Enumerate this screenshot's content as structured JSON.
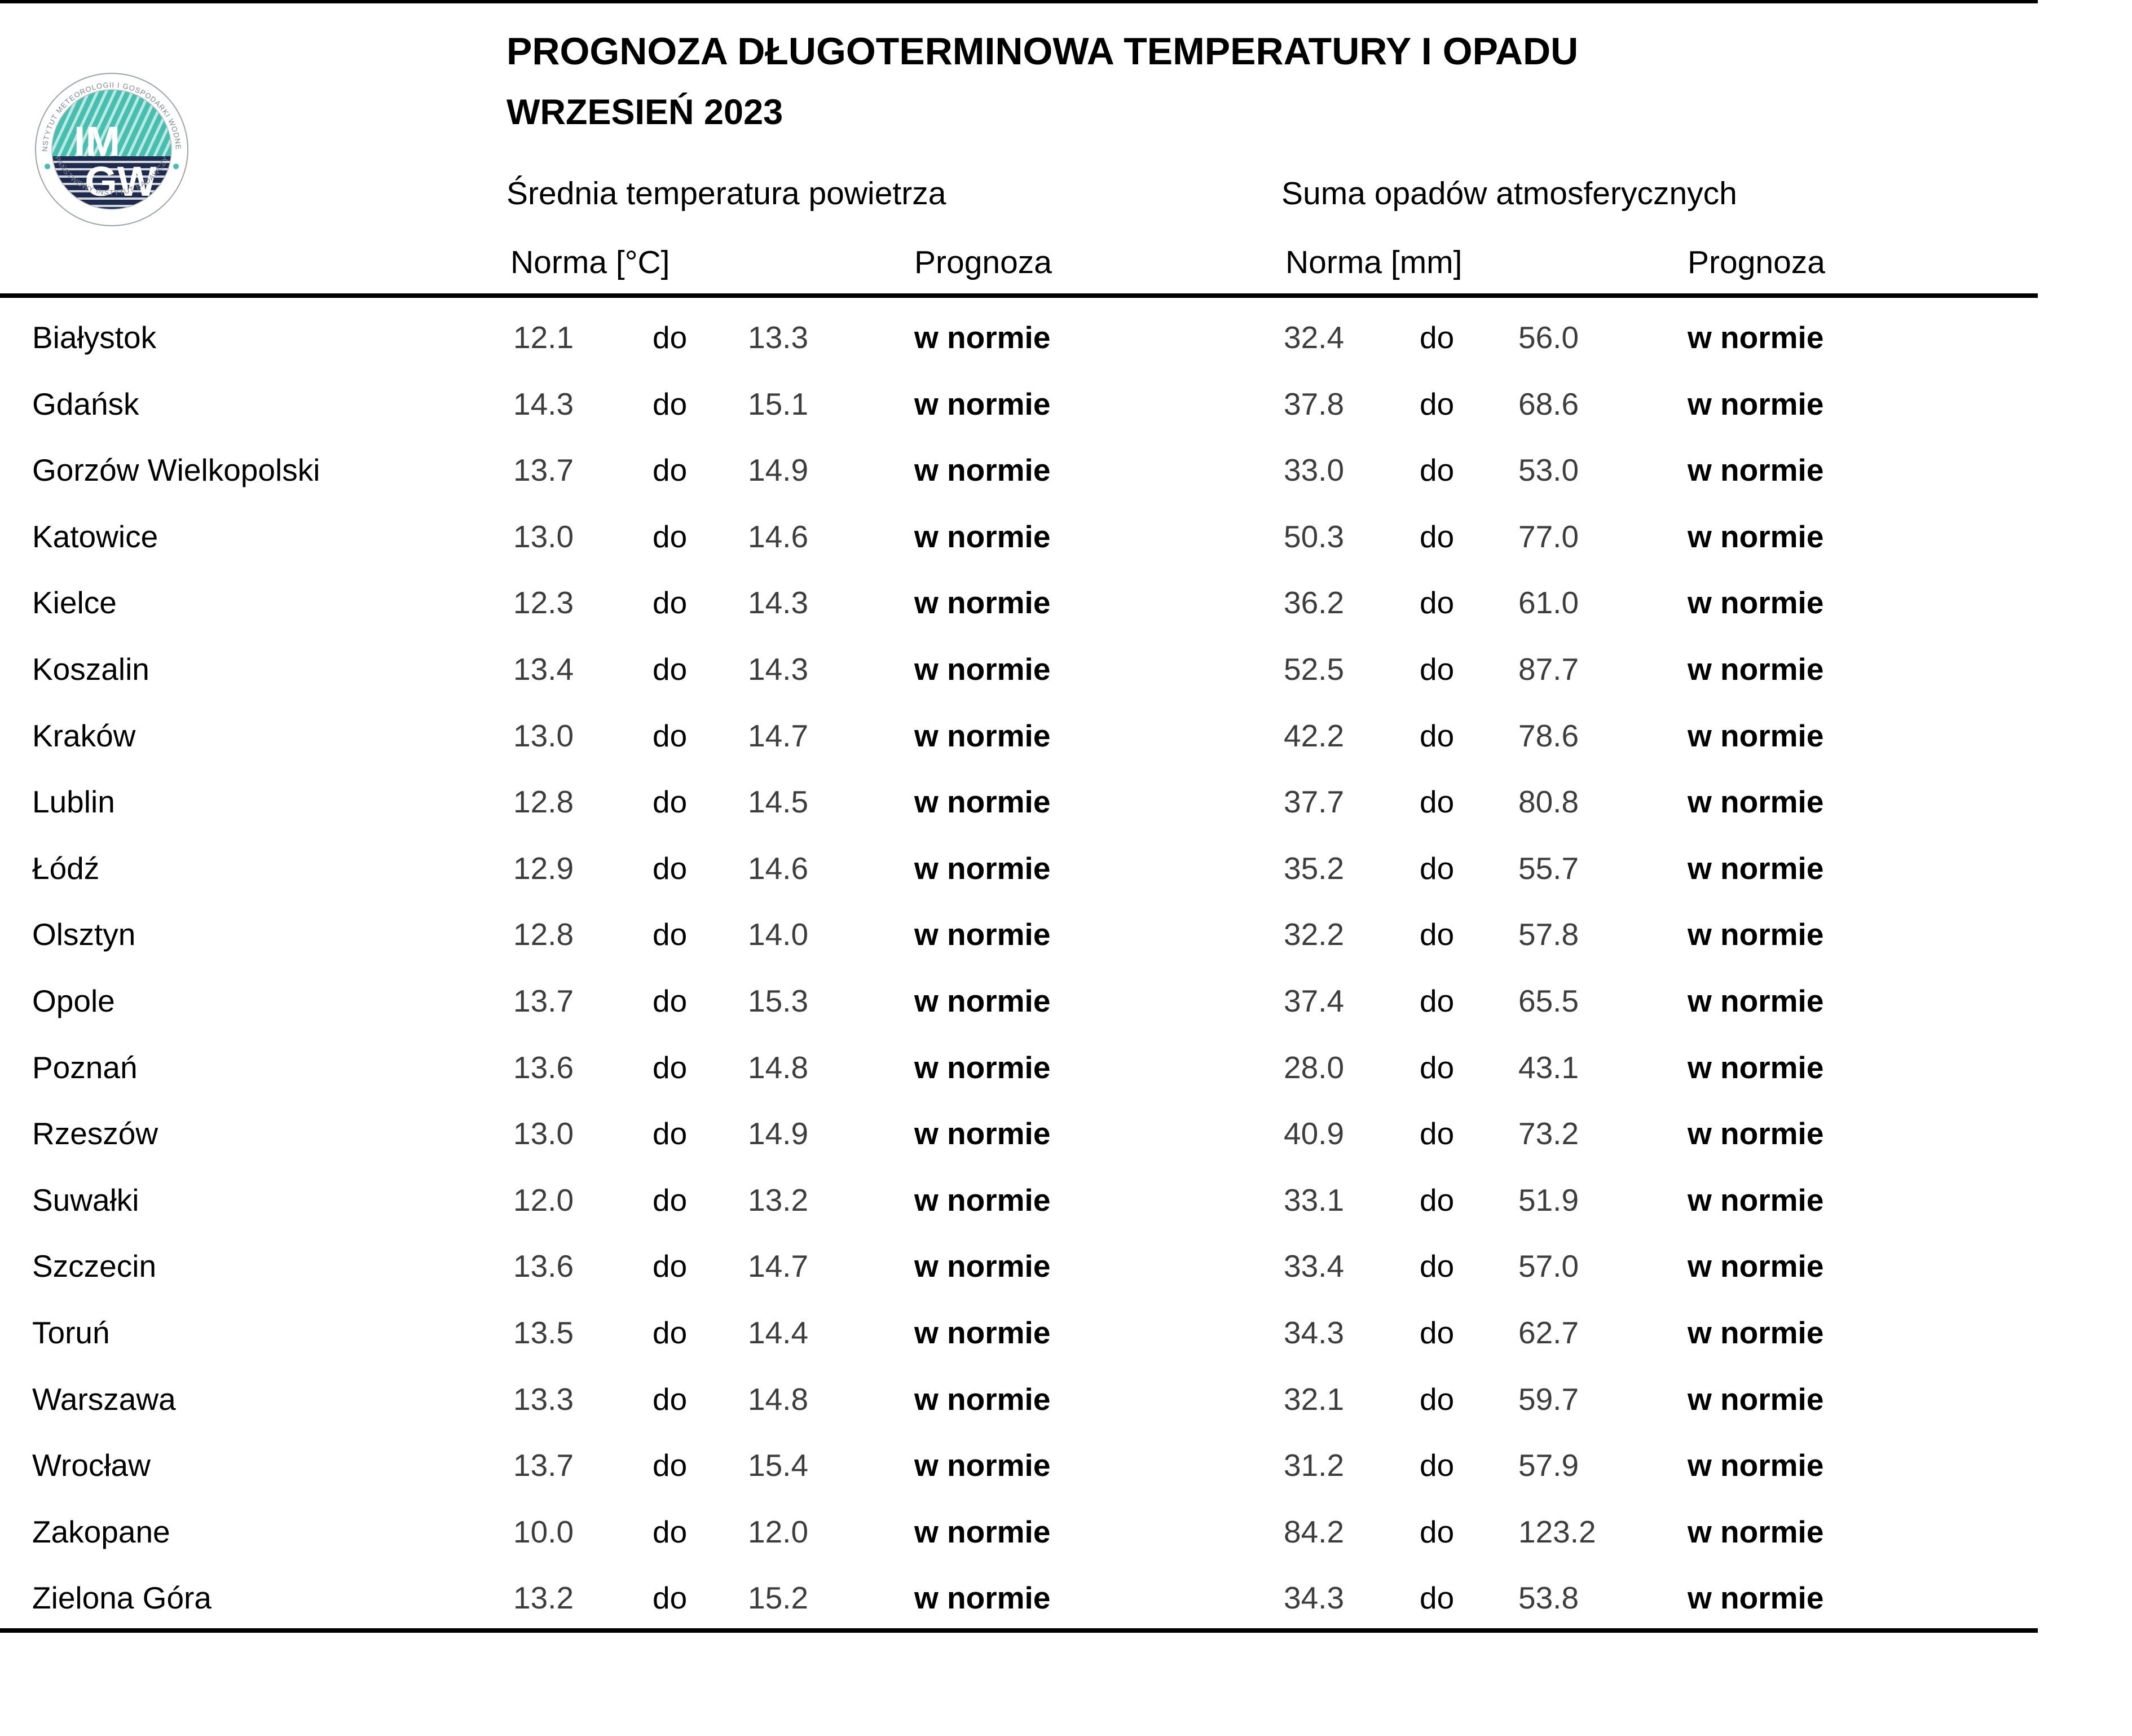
{
  "header": {
    "title": "PROGNOZA DŁUGOTERMINOWA TEMPERATURY I OPADU",
    "subtitle": "WRZESIEŃ 2023",
    "temp_group": "Średnia temperatura powietrza",
    "precip_group": "Suma opadów atmosferycznych",
    "temp_norma": "Norma [°C]",
    "temp_prognoza": "Prognoza",
    "precip_norma": "Norma [mm]",
    "precip_prognoza": "Prognoza"
  },
  "labels": {
    "range_separator": "do"
  },
  "logo": {
    "rim_top": "INSTYTUT METEOROLOGII I GOSPODARKI WODNEJ",
    "rim_bottom": "PAŃSTWOWY INSTYTUT BADAWCZY",
    "upper_text": "IM",
    "lower_text": "GW",
    "teal": "#45BFAF",
    "navy": "#1E2B4E",
    "rim_gray": "#9aa2ad"
  },
  "rows": [
    {
      "city": "Białystok",
      "temp_low": "12.1",
      "temp_high": "13.3",
      "temp_forecast": "w normie",
      "precip_low": "32.4",
      "precip_high": "56.0",
      "precip_forecast": "w normie"
    },
    {
      "city": "Gdańsk",
      "temp_low": "14.3",
      "temp_high": "15.1",
      "temp_forecast": "w normie",
      "precip_low": "37.8",
      "precip_high": "68.6",
      "precip_forecast": "w normie"
    },
    {
      "city": "Gorzów Wielkopolski",
      "temp_low": "13.7",
      "temp_high": "14.9",
      "temp_forecast": "w normie",
      "precip_low": "33.0",
      "precip_high": "53.0",
      "precip_forecast": "w normie"
    },
    {
      "city": "Katowice",
      "temp_low": "13.0",
      "temp_high": "14.6",
      "temp_forecast": "w normie",
      "precip_low": "50.3",
      "precip_high": "77.0",
      "precip_forecast": "w normie"
    },
    {
      "city": "Kielce",
      "temp_low": "12.3",
      "temp_high": "14.3",
      "temp_forecast": "w normie",
      "precip_low": "36.2",
      "precip_high": "61.0",
      "precip_forecast": "w normie"
    },
    {
      "city": "Koszalin",
      "temp_low": "13.4",
      "temp_high": "14.3",
      "temp_forecast": "w normie",
      "precip_low": "52.5",
      "precip_high": "87.7",
      "precip_forecast": "w normie"
    },
    {
      "city": "Kraków",
      "temp_low": "13.0",
      "temp_high": "14.7",
      "temp_forecast": "w normie",
      "precip_low": "42.2",
      "precip_high": "78.6",
      "precip_forecast": "w normie"
    },
    {
      "city": "Lublin",
      "temp_low": "12.8",
      "temp_high": "14.5",
      "temp_forecast": "w normie",
      "precip_low": "37.7",
      "precip_high": "80.8",
      "precip_forecast": "w normie"
    },
    {
      "city": "Łódź",
      "temp_low": "12.9",
      "temp_high": "14.6",
      "temp_forecast": "w normie",
      "precip_low": "35.2",
      "precip_high": "55.7",
      "precip_forecast": "w normie"
    },
    {
      "city": "Olsztyn",
      "temp_low": "12.8",
      "temp_high": "14.0",
      "temp_forecast": "w normie",
      "precip_low": "32.2",
      "precip_high": "57.8",
      "precip_forecast": "w normie"
    },
    {
      "city": "Opole",
      "temp_low": "13.7",
      "temp_high": "15.3",
      "temp_forecast": "w normie",
      "precip_low": "37.4",
      "precip_high": "65.5",
      "precip_forecast": "w normie"
    },
    {
      "city": "Poznań",
      "temp_low": "13.6",
      "temp_high": "14.8",
      "temp_forecast": "w normie",
      "precip_low": "28.0",
      "precip_high": "43.1",
      "precip_forecast": "w normie"
    },
    {
      "city": "Rzeszów",
      "temp_low": "13.0",
      "temp_high": "14.9",
      "temp_forecast": "w normie",
      "precip_low": "40.9",
      "precip_high": "73.2",
      "precip_forecast": "w normie"
    },
    {
      "city": "Suwałki",
      "temp_low": "12.0",
      "temp_high": "13.2",
      "temp_forecast": "w normie",
      "precip_low": "33.1",
      "precip_high": "51.9",
      "precip_forecast": "w normie"
    },
    {
      "city": "Szczecin",
      "temp_low": "13.6",
      "temp_high": "14.7",
      "temp_forecast": "w normie",
      "precip_low": "33.4",
      "precip_high": "57.0",
      "precip_forecast": "w normie"
    },
    {
      "city": "Toruń",
      "temp_low": "13.5",
      "temp_high": "14.4",
      "temp_forecast": "w normie",
      "precip_low": "34.3",
      "precip_high": "62.7",
      "precip_forecast": "w normie"
    },
    {
      "city": "Warszawa",
      "temp_low": "13.3",
      "temp_high": "14.8",
      "temp_forecast": "w normie",
      "precip_low": "32.1",
      "precip_high": "59.7",
      "precip_forecast": "w normie"
    },
    {
      "city": "Wrocław",
      "temp_low": "13.7",
      "temp_high": "15.4",
      "temp_forecast": "w normie",
      "precip_low": "31.2",
      "precip_high": "57.9",
      "precip_forecast": "w normie"
    },
    {
      "city": "Zakopane",
      "temp_low": "10.0",
      "temp_high": "12.0",
      "temp_forecast": "w normie",
      "precip_low": "84.2",
      "precip_high": "123.2",
      "precip_forecast": "w normie"
    },
    {
      "city": "Zielona Góra",
      "temp_low": "13.2",
      "temp_high": "15.2",
      "temp_forecast": "w normie",
      "precip_low": "34.3",
      "precip_high": "53.8",
      "precip_forecast": "w normie"
    }
  ]
}
